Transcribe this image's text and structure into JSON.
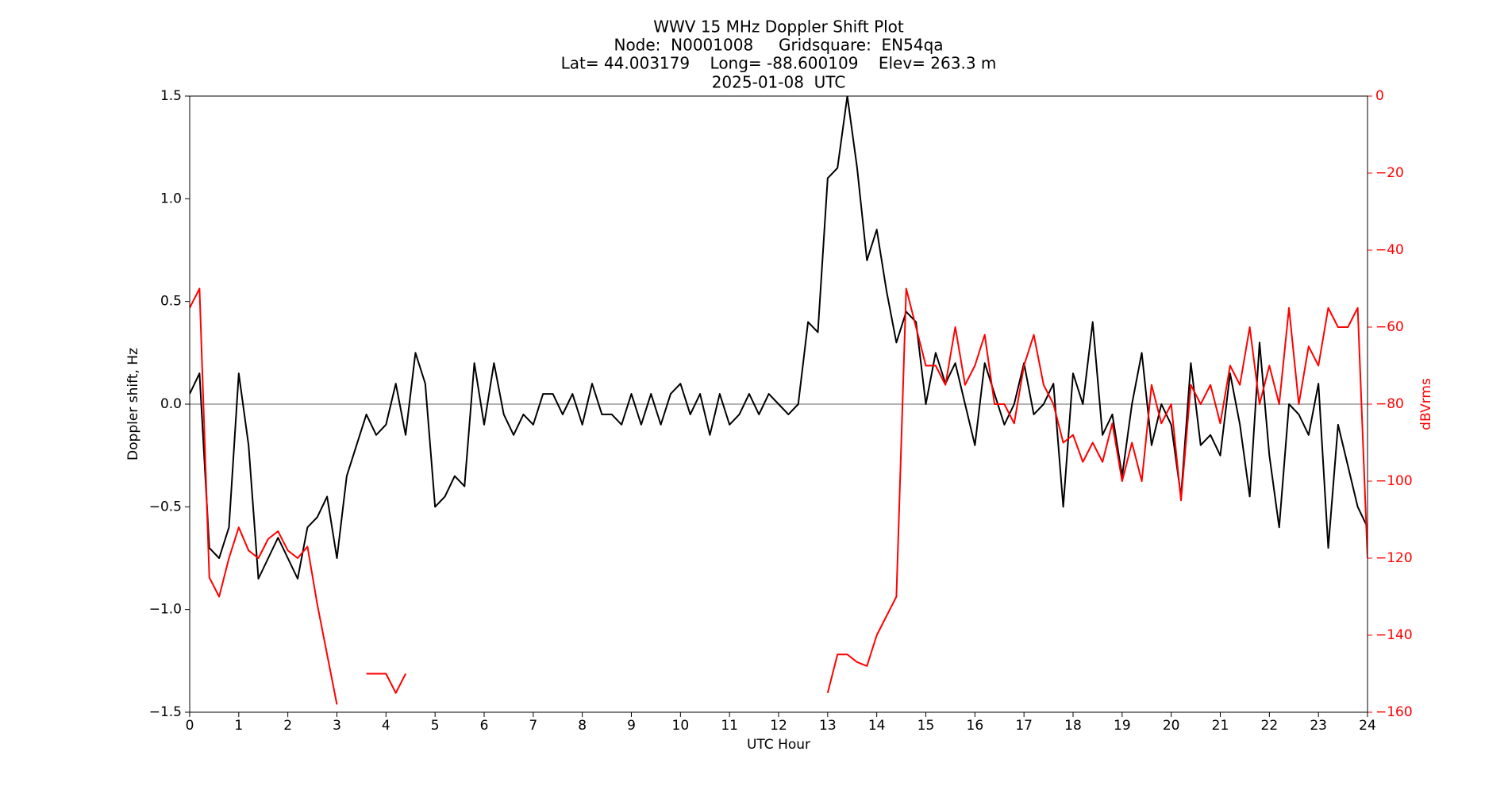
{
  "chart_data": {
    "type": "line",
    "title": [
      "WWV 15 MHz Doppler Shift Plot",
      "Node:  N0001008     Gridsquare:  EN54qa",
      "Lat= 44.003179    Long= -88.600109    Elev= 263.3 m",
      "2025-01-08  UTC"
    ],
    "xlabel": "UTC Hour",
    "ylabel": "Doppler shift, Hz",
    "y2label": "dBVrms",
    "xlim": [
      0,
      24
    ],
    "xticks": [
      0,
      1,
      2,
      3,
      4,
      5,
      6,
      7,
      8,
      9,
      10,
      11,
      12,
      13,
      14,
      15,
      16,
      17,
      18,
      19,
      20,
      21,
      22,
      23,
      24
    ],
    "ylim": [
      -1.5,
      1.5
    ],
    "yticks": [
      {
        "value": -1.5,
        "label": "−1.5"
      },
      {
        "value": -1.0,
        "label": "−1.0"
      },
      {
        "value": -0.5,
        "label": "−0.5"
      },
      {
        "value": 0,
        "label": "0.0"
      },
      {
        "value": 0.5,
        "label": "0.5"
      },
      {
        "value": 1.0,
        "label": "1.0"
      },
      {
        "value": 1.5,
        "label": "1.5"
      }
    ],
    "y2lim": [
      -160,
      0
    ],
    "y2ticks": [
      0,
      {
        "value": -20,
        "label": "−20"
      },
      {
        "value": -40,
        "label": "−40"
      },
      {
        "value": -60,
        "label": "−60"
      },
      {
        "value": -80,
        "label": "−80"
      },
      {
        "value": -100,
        "label": "−100"
      },
      {
        "value": -120,
        "label": "−120"
      },
      {
        "value": -140,
        "label": "−140"
      },
      {
        "value": -160,
        "label": "−160"
      }
    ],
    "y2color": "#ff0000",
    "hline": 0,
    "x": [
      0,
      0.2,
      0.4,
      0.6,
      0.8,
      1.0,
      1.2,
      1.4,
      1.6,
      1.8,
      2.0,
      2.2,
      2.4,
      2.6,
      2.8,
      3.0,
      3.2,
      3.4,
      3.6,
      3.8,
      4.0,
      4.2,
      4.4,
      4.6,
      4.8,
      5.0,
      5.2,
      5.4,
      5.6,
      5.8,
      6.0,
      6.2,
      6.4,
      6.6,
      6.8,
      7.0,
      7.2,
      7.4,
      7.6,
      7.8,
      8.0,
      8.2,
      8.4,
      8.6,
      8.8,
      9.0,
      9.2,
      9.4,
      9.6,
      9.8,
      10.0,
      10.2,
      10.4,
      10.6,
      10.8,
      11.0,
      11.2,
      11.4,
      11.6,
      11.8,
      12.0,
      12.2,
      12.4,
      12.6,
      12.8,
      13.0,
      13.2,
      13.4,
      13.6,
      13.8,
      14.0,
      14.2,
      14.4,
      14.6,
      14.8,
      15.0,
      15.2,
      15.4,
      15.6,
      15.8,
      16.0,
      16.2,
      16.4,
      16.6,
      16.8,
      17.0,
      17.2,
      17.4,
      17.6,
      17.8,
      18.0,
      18.2,
      18.4,
      18.6,
      18.8,
      19.0,
      19.2,
      19.4,
      19.6,
      19.8,
      20.0,
      20.2,
      20.4,
      20.6,
      20.8,
      21.0,
      21.2,
      21.4,
      21.6,
      21.8,
      22.0,
      22.2,
      22.4,
      22.6,
      22.8,
      23.0,
      23.2,
      23.4,
      23.6,
      23.8,
      24.0
    ],
    "series": [
      {
        "color": "#000000",
        "values": [
          0.05,
          0.15,
          -0.7,
          -0.75,
          -0.6,
          0.15,
          -0.2,
          -0.85,
          -0.75,
          -0.65,
          -0.75,
          -0.85,
          -0.6,
          -0.55,
          -0.45,
          -0.75,
          -0.35,
          -0.2,
          -0.05,
          -0.15,
          -0.1,
          0.1,
          -0.15,
          0.25,
          0.1,
          -0.5,
          -0.45,
          -0.35,
          -0.4,
          0.2,
          -0.1,
          0.2,
          -0.05,
          -0.15,
          -0.05,
          -0.1,
          0.05,
          0.05,
          -0.05,
          0.05,
          -0.1,
          0.1,
          -0.05,
          -0.05,
          -0.1,
          0.05,
          -0.1,
          0.05,
          -0.1,
          0.05,
          0.1,
          -0.05,
          0.05,
          -0.15,
          0.05,
          -0.1,
          -0.05,
          0.05,
          -0.05,
          0.05,
          0.0,
          -0.05,
          0.0,
          0.4,
          0.35,
          1.1,
          1.15,
          1.5,
          1.15,
          0.7,
          0.85,
          0.55,
          0.3,
          0.45,
          0.4,
          0.0,
          0.25,
          0.1,
          0.2,
          0.0,
          -0.2,
          0.2,
          0.05,
          -0.1,
          0.0,
          0.2,
          -0.05,
          0.0,
          0.1,
          -0.5,
          0.15,
          0.0,
          0.4,
          -0.15,
          -0.05,
          -0.35,
          0.0,
          0.25,
          -0.2,
          0.0,
          -0.1,
          -0.45,
          0.2,
          -0.2,
          -0.15,
          -0.25,
          0.15,
          -0.1,
          -0.45,
          0.3,
          -0.25,
          -0.6,
          0.0,
          -0.05,
          -0.15,
          0.1,
          -0.7,
          -0.1,
          -0.3,
          -0.5,
          -0.6
        ]
      },
      {
        "color": "#ff0000",
        "axis": "y2",
        "values": [
          -55,
          -50,
          -125,
          -130,
          -120,
          -112,
          -118,
          -120,
          -115,
          -113,
          -118,
          -120,
          -117,
          -132,
          -145,
          -158,
          null,
          null,
          -150,
          -150,
          -150,
          -155,
          -150,
          null,
          null,
          null,
          null,
          null,
          null,
          null,
          null,
          null,
          null,
          null,
          null,
          null,
          null,
          null,
          null,
          null,
          null,
          null,
          null,
          null,
          null,
          null,
          null,
          null,
          null,
          null,
          null,
          null,
          null,
          null,
          null,
          null,
          null,
          null,
          null,
          null,
          null,
          null,
          null,
          null,
          null,
          -155,
          -145,
          -145,
          -147,
          -148,
          -140,
          -135,
          -130,
          -50,
          -60,
          -70,
          -70,
          -75,
          -60,
          -75,
          -70,
          -62,
          -80,
          -80,
          -85,
          -70,
          -62,
          -75,
          -80,
          -90,
          -88,
          -95,
          -90,
          -95,
          -85,
          -100,
          -90,
          -100,
          -75,
          -85,
          -80,
          -105,
          -75,
          -80,
          -75,
          -85,
          -70,
          -75,
          -60,
          -80,
          -70,
          -80,
          -55,
          -80,
          -65,
          -70,
          -55,
          -60,
          -60,
          -55,
          -120
        ]
      }
    ]
  }
}
